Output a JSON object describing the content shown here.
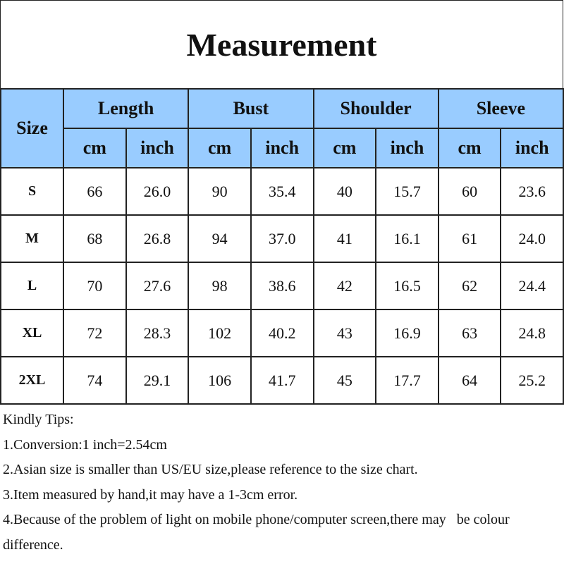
{
  "title": "Measurement",
  "headers": {
    "size": "Size",
    "groups": [
      "Length",
      "Bust",
      "Shoulder",
      "Sleeve"
    ],
    "units": [
      "cm",
      "inch",
      "cm",
      "inch",
      "cm",
      "inch",
      "cm",
      "inch"
    ]
  },
  "rows": [
    {
      "size": "S",
      "values": [
        "66",
        "26.0",
        "90",
        "35.4",
        "40",
        "15.7",
        "60",
        "23.6"
      ]
    },
    {
      "size": "M",
      "values": [
        "68",
        "26.8",
        "94",
        "37.0",
        "41",
        "16.1",
        "61",
        "24.0"
      ]
    },
    {
      "size": "L",
      "values": [
        "70",
        "27.6",
        "98",
        "38.6",
        "42",
        "16.5",
        "62",
        "24.4"
      ]
    },
    {
      "size": "XL",
      "values": [
        "72",
        "28.3",
        "102",
        "40.2",
        "43",
        "16.9",
        "63",
        "24.8"
      ]
    },
    {
      "size": "2XL",
      "values": [
        "74",
        "29.1",
        "106",
        "41.7",
        "45",
        "17.7",
        "64",
        "25.2"
      ]
    }
  ],
  "tips": {
    "heading": "Kindly Tips:",
    "lines": [
      "1.Conversion:1 inch=2.54cm",
      "2.Asian size is smaller than US/EU size,please reference to the size chart.",
      "3.Item measured by hand,it may have a 1-3cm error.",
      "4.Because of the problem of light on mobile phone/computer screen,there may   be colour",
      "difference."
    ]
  },
  "colors": {
    "header_bg": "#99ccff"
  }
}
